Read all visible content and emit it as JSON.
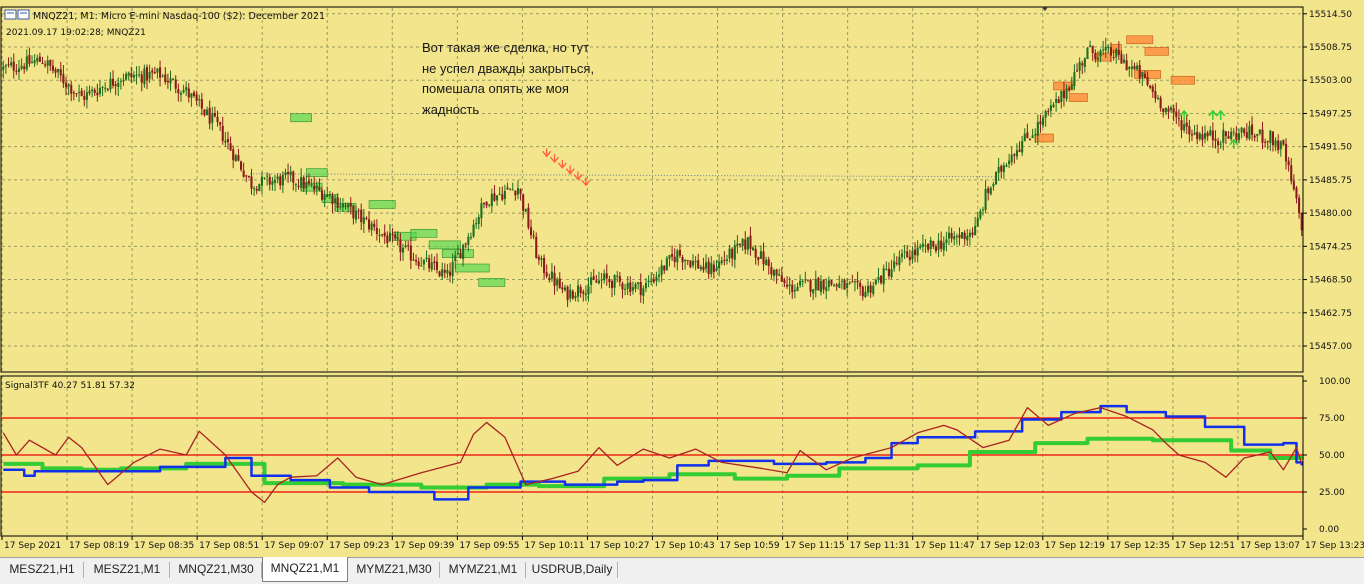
{
  "header": {
    "title": "MNQZ21, M1:  Micro E-mini Nasdaq-100 ($2): December 2021",
    "subtitle": "2021.09.17 19:02:28; MNQZ21"
  },
  "annotation": "Вот такая же сделка, но тут\nне успел дважды закрыться,\nпомешала опять же моя\nжадность",
  "indicator_label": "Signal3TF 40.27 51.81 57.32",
  "colors": {
    "background": "#f2e58c",
    "grid": "#9c9c5c",
    "candle_up": "#1f6f1f",
    "candle_down": "#8b1a1a",
    "zone_green": "#4ed84e",
    "zone_orange": "#ff8a3a",
    "level_red": "#ee0000",
    "series_blue": "#1030ee",
    "series_green": "#33cc33",
    "series_brown": "#aa2222"
  },
  "tabs": [
    {
      "label": "MESZ21,H1",
      "active": false
    },
    {
      "label": "MESZ21,M1",
      "active": false
    },
    {
      "label": "MNQZ21,M30",
      "active": false
    },
    {
      "label": "MNQZ21,M1",
      "active": true
    },
    {
      "label": "MYMZ21,M30",
      "active": false
    },
    {
      "label": "MYMZ21,M1",
      "active": false
    },
    {
      "label": "USDRUB,Daily",
      "active": false
    }
  ],
  "chart_data": [
    {
      "type": "candlestick",
      "title": "MNQZ21, M1",
      "y_ticks": [
        "15514.50",
        "15508.75",
        "15503.00",
        "15497.25",
        "15491.50",
        "15485.75",
        "15480.00",
        "15474.25",
        "15468.50",
        "15462.75",
        "15457.00"
      ],
      "ylim": [
        15452.5,
        15515.5
      ],
      "x_ticks": [
        "17 Sep 2021",
        "17 Sep 08:19",
        "17 Sep 08:35",
        "17 Sep 08:51",
        "17 Sep 09:07",
        "17 Sep 09:23",
        "17 Sep 09:39",
        "17 Sep 09:55",
        "17 Sep 10:11",
        "17 Sep 10:27",
        "17 Sep 10:43",
        "17 Sep 10:59",
        "17 Sep 11:15",
        "17 Sep 11:31",
        "17 Sep 11:47",
        "17 Sep 12:03",
        "17 Sep 12:19",
        "17 Sep 12:35",
        "17 Sep 12:51",
        "17 Sep 13:07",
        "17 Sep 13:23"
      ],
      "close_anchors": [
        [
          0,
          15505.0
        ],
        [
          15,
          15506.5
        ],
        [
          30,
          15500.0
        ],
        [
          45,
          15503.5
        ],
        [
          60,
          15504.0
        ],
        [
          70,
          15501.0
        ],
        [
          82,
          15495.0
        ],
        [
          95,
          15485.0
        ],
        [
          110,
          15486.0
        ],
        [
          125,
          15483.0
        ],
        [
          140,
          15478.0
        ],
        [
          155,
          15473.0
        ],
        [
          170,
          15469.0
        ],
        [
          185,
          15482.5
        ],
        [
          197,
          15484.5
        ],
        [
          205,
          15471.5
        ],
        [
          215,
          15466.0
        ],
        [
          230,
          15468.5
        ],
        [
          245,
          15467.0
        ],
        [
          258,
          15473.0
        ],
        [
          270,
          15470.0
        ],
        [
          285,
          15475.0
        ],
        [
          300,
          15467.0
        ],
        [
          315,
          15468.0
        ],
        [
          330,
          15466.5
        ],
        [
          345,
          15472.5
        ],
        [
          360,
          15475.0
        ],
        [
          372,
          15477.0
        ],
        [
          376,
          15483.0
        ],
        [
          385,
          15490.0
        ],
        [
          395,
          15494.5
        ],
        [
          405,
          15500.0
        ],
        [
          415,
          15508.0
        ],
        [
          425,
          15507.5
        ],
        [
          435,
          15504.0
        ],
        [
          445,
          15498.0
        ],
        [
          455,
          15494.0
        ],
        [
          465,
          15493.0
        ],
        [
          475,
          15494.0
        ],
        [
          485,
          15493.0
        ],
        [
          490,
          15491.0
        ],
        [
          497,
          15478.0
        ]
      ],
      "total_bars": 498
    },
    {
      "type": "line",
      "title": "Signal3TF",
      "legend_values": [
        40.27,
        51.81,
        57.32
      ],
      "y_ticks": [
        "100.00",
        "75.00",
        "50.00",
        "25.00",
        "0.00"
      ],
      "ylim": [
        0,
        100
      ],
      "levels": [
        75,
        50,
        25
      ],
      "series": [
        {
          "key": "blue",
          "step": true,
          "points": [
            [
              0,
              40
            ],
            [
              8,
              36
            ],
            [
              12,
              39
            ],
            [
              60,
              42
            ],
            [
              85,
              48
            ],
            [
              95,
              36
            ],
            [
              110,
              33
            ],
            [
              125,
              28
            ],
            [
              140,
              25
            ],
            [
              165,
              20
            ],
            [
              178,
              28
            ],
            [
              198,
              32
            ],
            [
              215,
              30
            ],
            [
              235,
              32
            ],
            [
              245,
              33
            ],
            [
              258,
              43
            ],
            [
              270,
              46
            ],
            [
              295,
              44
            ],
            [
              315,
              45
            ],
            [
              330,
              48
            ],
            [
              340,
              58
            ],
            [
              350,
              62
            ],
            [
              372,
              66
            ],
            [
              390,
              74
            ],
            [
              405,
              79
            ],
            [
              420,
              83
            ],
            [
              430,
              79
            ],
            [
              445,
              76
            ],
            [
              460,
              69
            ],
            [
              475,
              57
            ],
            [
              490,
              58
            ],
            [
              495,
              45
            ],
            [
              497,
              43
            ]
          ]
        },
        {
          "key": "green",
          "step": true,
          "points": [
            [
              0,
              44
            ],
            [
              15,
              41
            ],
            [
              30,
              40
            ],
            [
              45,
              41
            ],
            [
              70,
              44
            ],
            [
              100,
              31
            ],
            [
              130,
              30
            ],
            [
              160,
              28
            ],
            [
              185,
              30
            ],
            [
              205,
              29
            ],
            [
              230,
              34
            ],
            [
              255,
              37
            ],
            [
              280,
              34
            ],
            [
              300,
              36
            ],
            [
              320,
              41
            ],
            [
              350,
              43
            ],
            [
              370,
              52
            ],
            [
              395,
              58
            ],
            [
              415,
              61
            ],
            [
              440,
              60
            ],
            [
              470,
              53
            ],
            [
              485,
              48
            ],
            [
              497,
              47
            ]
          ]
        },
        {
          "key": "brown",
          "step": false,
          "points": [
            [
              0,
              65
            ],
            [
              5,
              50
            ],
            [
              10,
              60
            ],
            [
              20,
              50
            ],
            [
              25,
              62
            ],
            [
              30,
              55
            ],
            [
              40,
              30
            ],
            [
              50,
              45
            ],
            [
              60,
              54
            ],
            [
              70,
              50
            ],
            [
              75,
              66
            ],
            [
              85,
              50
            ],
            [
              95,
              25
            ],
            [
              100,
              18
            ],
            [
              105,
              30
            ],
            [
              110,
              35
            ],
            [
              120,
              36
            ],
            [
              128,
              48
            ],
            [
              135,
              35
            ],
            [
              145,
              30
            ],
            [
              160,
              38
            ],
            [
              175,
              45
            ],
            [
              180,
              64
            ],
            [
              185,
              72
            ],
            [
              192,
              62
            ],
            [
              200,
              30
            ],
            [
              210,
              34
            ],
            [
              220,
              39
            ],
            [
              228,
              55
            ],
            [
              235,
              43
            ],
            [
              245,
              54
            ],
            [
              255,
              48
            ],
            [
              265,
              54
            ],
            [
              275,
              45
            ],
            [
              290,
              41
            ],
            [
              300,
              38
            ],
            [
              305,
              53
            ],
            [
              315,
              40
            ],
            [
              325,
              48
            ],
            [
              340,
              55
            ],
            [
              350,
              65
            ],
            [
              360,
              70
            ],
            [
              365,
              67
            ],
            [
              375,
              55
            ],
            [
              385,
              60
            ],
            [
              392,
              82
            ],
            [
              400,
              70
            ],
            [
              410,
              78
            ],
            [
              420,
              82
            ],
            [
              430,
              76
            ],
            [
              440,
              67
            ],
            [
              445,
              58
            ],
            [
              450,
              50
            ],
            [
              460,
              45
            ],
            [
              468,
              35
            ],
            [
              475,
              48
            ],
            [
              485,
              52
            ],
            [
              490,
              40
            ],
            [
              495,
              55
            ],
            [
              497,
              44
            ]
          ]
        }
      ]
    }
  ]
}
